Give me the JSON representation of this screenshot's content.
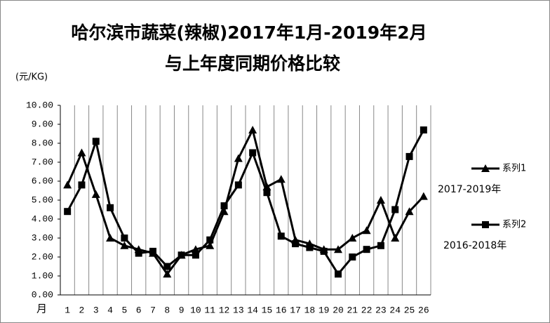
{
  "chart_data": {
    "type": "line",
    "title": "哈尔滨市蔬菜(辣椒)2017年1月-2019年2月",
    "subtitle": "与上年度同期价格比较",
    "y_label": "(元/KG)",
    "x_label": "月",
    "categories": [
      "1",
      "2",
      "3",
      "4",
      "5",
      "6",
      "7",
      "8",
      "9",
      "10",
      "11",
      "12",
      "13",
      "14",
      "15",
      "16",
      "17",
      "18",
      "19",
      "20",
      "21",
      "22",
      "23",
      "24",
      "25",
      "26"
    ],
    "series": [
      {
        "name": "系列1",
        "color": "#000000",
        "marker": "triangle",
        "values": [
          5.8,
          7.5,
          5.3,
          3.0,
          2.6,
          2.4,
          2.2,
          1.1,
          2.1,
          2.4,
          2.6,
          4.4,
          7.2,
          8.7,
          5.7,
          6.1,
          2.9,
          2.7,
          2.4,
          2.4,
          3.0,
          3.4,
          5.0,
          3.0,
          4.4,
          5.2
        ]
      },
      {
        "name": "系列2",
        "color": "#000000",
        "marker": "square",
        "values": [
          4.4,
          5.8,
          8.1,
          4.6,
          3.0,
          2.2,
          2.3,
          1.5,
          2.1,
          2.1,
          2.9,
          4.7,
          5.8,
          7.5,
          5.4,
          3.1,
          2.7,
          2.5,
          2.3,
          1.1,
          2.0,
          2.4,
          2.6,
          4.5,
          7.3,
          8.7
        ]
      }
    ],
    "annotations": [
      "2017-2019年",
      "2016-2018年"
    ],
    "ylim": [
      0,
      10
    ],
    "yticks": [
      {
        "value": 0,
        "label": "0.00"
      },
      {
        "value": 1,
        "label": "1.00"
      },
      {
        "value": 2,
        "label": "2.00"
      },
      {
        "value": 3,
        "label": "3.00"
      },
      {
        "value": 4,
        "label": "4.00"
      },
      {
        "value": 5,
        "label": "5.00"
      },
      {
        "value": 6,
        "label": "6.00"
      },
      {
        "value": 7,
        "label": "7.00"
      },
      {
        "value": 8,
        "label": "8.00"
      },
      {
        "value": 9,
        "label": "9.00"
      },
      {
        "value": 10,
        "label": "10.00"
      }
    ],
    "grid": "x",
    "legend": "right"
  }
}
